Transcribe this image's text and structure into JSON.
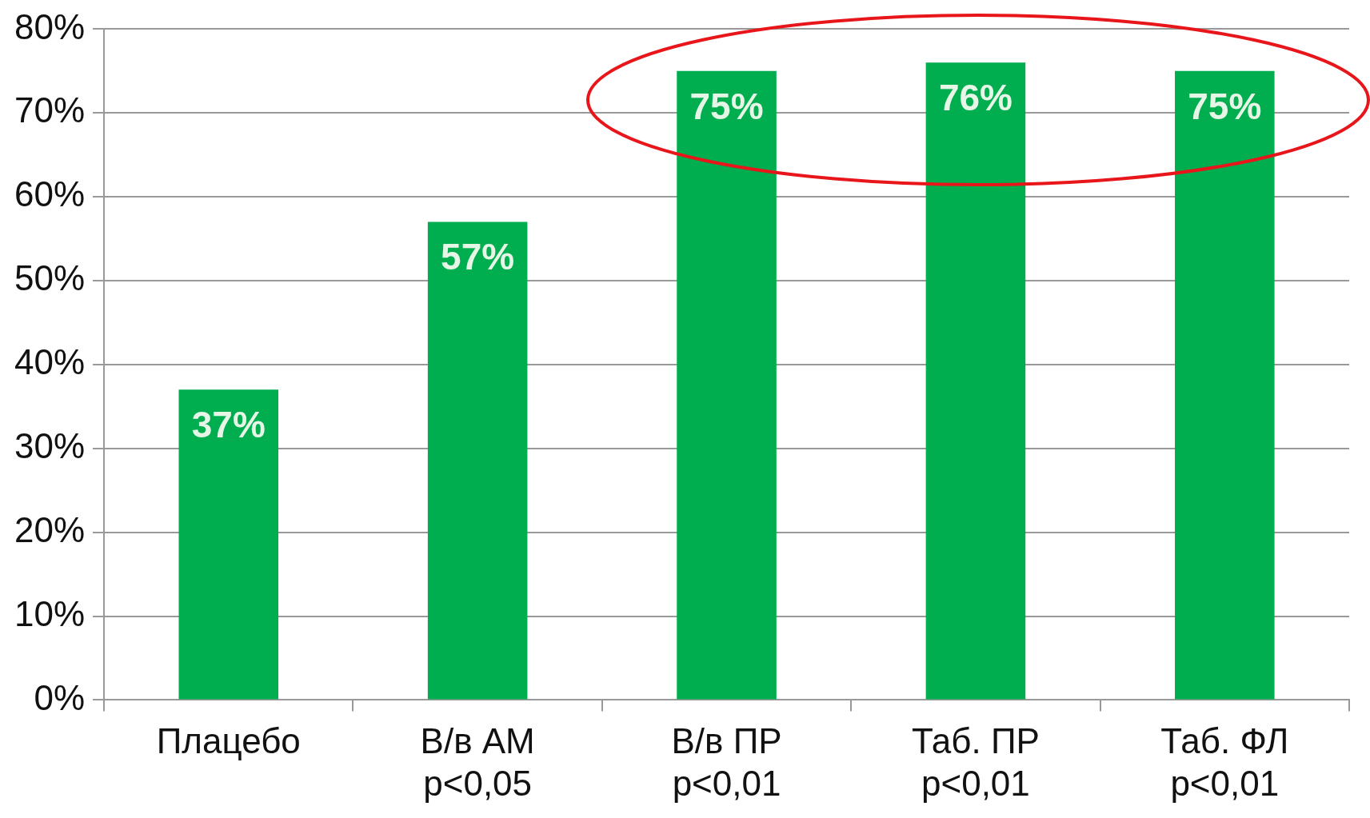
{
  "chart_data": {
    "type": "bar",
    "categories": [
      "Плацебо",
      "В/в АМ\np<0,05",
      "В/в ПР\np<0,01",
      "Таб. ПР\np<0,01",
      "Таб. ФЛ\np<0,01"
    ],
    "values": [
      37,
      57,
      75,
      76,
      75
    ],
    "value_labels": [
      "37%",
      "57%",
      "75%",
      "76%",
      "75%"
    ],
    "color": "#00ad4f",
    "ylim": [
      0,
      80
    ],
    "yticks": [
      {
        "value": 0,
        "label": "0%"
      },
      {
        "value": 10,
        "label": "10%"
      },
      {
        "value": 20,
        "label": "20%"
      },
      {
        "value": 30,
        "label": "30%"
      },
      {
        "value": 40,
        "label": "40%"
      },
      {
        "value": 50,
        "label": "50%"
      },
      {
        "value": 60,
        "label": "60%"
      },
      {
        "value": 70,
        "label": "70%"
      },
      {
        "value": 80,
        "label": "80%"
      }
    ],
    "grid": "y",
    "legend": false
  }
}
